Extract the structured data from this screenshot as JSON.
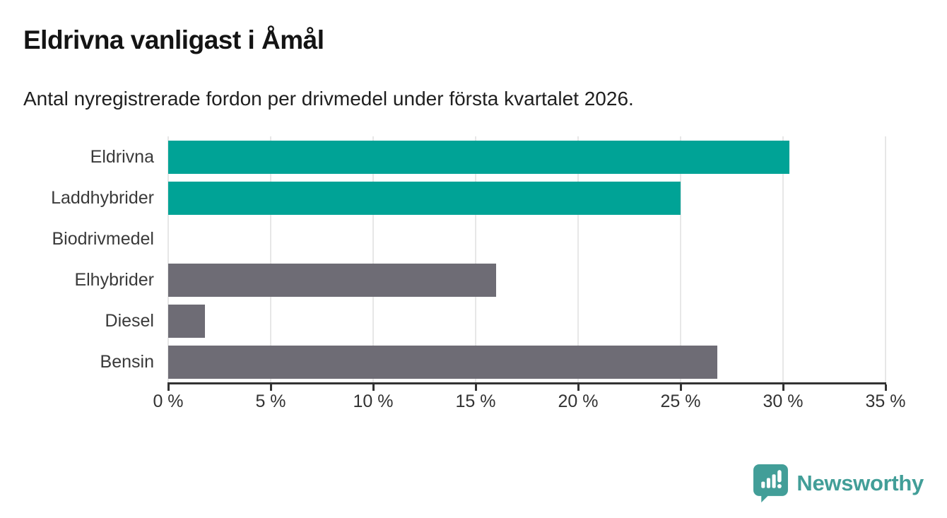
{
  "chart_data": {
    "type": "bar",
    "orientation": "horizontal",
    "title": "Eldrivna vanligast i Åmål",
    "subtitle": "Antal nyregistrerade fordon per drivmedel under första kvartalet 2026.",
    "categories": [
      "Eldrivna",
      "Laddhybrider",
      "Biodrivmedel",
      "Elhybrider",
      "Diesel",
      "Bensin"
    ],
    "values": [
      30.3,
      25.0,
      0,
      16.0,
      1.8,
      26.8
    ],
    "bar_colors": [
      "#00a396",
      "#00a396",
      "#00a396",
      "#6e6c75",
      "#6e6c75",
      "#6e6c75"
    ],
    "xlim": [
      0,
      35
    ],
    "xticks": [
      0,
      5,
      10,
      15,
      20,
      25,
      30,
      35
    ],
    "xtick_suffix": " %",
    "grid": "vertical",
    "gridline_color": "#e7e7e7",
    "axis_color": "#333333",
    "legend": "none"
  },
  "colors": {
    "accent_teal": "#00a396",
    "neutral_gray": "#6e6c75",
    "brand_teal": "#429e98"
  },
  "footer": {
    "brand": "Newsworthy"
  }
}
